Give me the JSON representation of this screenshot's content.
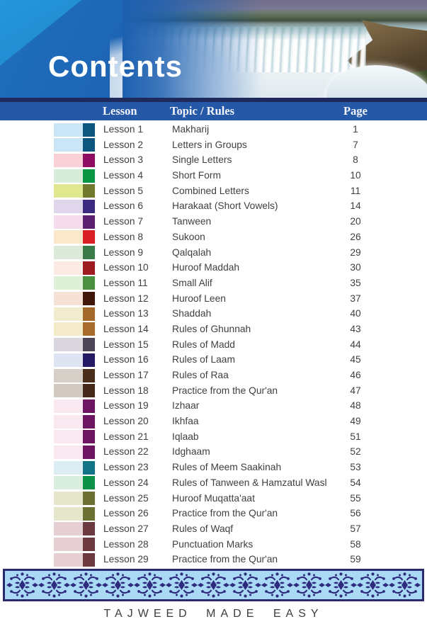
{
  "header": {
    "title": "Contents",
    "colors": {
      "header_blue": "#1d60b0",
      "header_light_blue": "#2189cd",
      "navy_rule": "#1e2a5c",
      "column_bar_blue": "#2559a8"
    }
  },
  "table": {
    "headers": {
      "lesson": "Lesson",
      "topic": "Topic / Rules",
      "page": "Page"
    },
    "rows": [
      {
        "lesson": "Lesson 1",
        "topic": "Makharij",
        "page": "1",
        "light": "#c9e5f6",
        "dark": "#0f567f"
      },
      {
        "lesson": "Lesson 2",
        "topic": "Letters in Groups",
        "page": "7",
        "light": "#c9e5f6",
        "dark": "#0f567f"
      },
      {
        "lesson": "Lesson 3",
        "topic": "Single Letters",
        "page": "8",
        "light": "#f8d0d5",
        "dark": "#8e0d62"
      },
      {
        "lesson": "Lesson 4",
        "topic": "Short Form",
        "page": "10",
        "light": "#d8ecdc",
        "dark": "#089544"
      },
      {
        "lesson": "Lesson 5",
        "topic": "Combined Letters",
        "page": "11",
        "light": "#dfe88f",
        "dark": "#71792e"
      },
      {
        "lesson": "Lesson 6",
        "topic": "Harakaat (Short Vowels)",
        "page": "14",
        "light": "#e0d6eb",
        "dark": "#3c2a80"
      },
      {
        "lesson": "Lesson 7",
        "topic": "Tanween",
        "page": "20",
        "light": "#f5dcea",
        "dark": "#5c2071"
      },
      {
        "lesson": "Lesson 8",
        "topic": "Sukoon",
        "page": "26",
        "light": "#fbe7cb",
        "dark": "#d81f26"
      },
      {
        "lesson": "Lesson 9",
        "topic": "Qalqalah",
        "page": "29",
        "light": "#dcead9",
        "dark": "#3b7b49"
      },
      {
        "lesson": "Lesson 10",
        "topic": "Huroof Maddah",
        "page": "30",
        "light": "#fcebe5",
        "dark": "#9d1b20"
      },
      {
        "lesson": "Lesson 11",
        "topic": "Small Alif",
        "page": "35",
        "light": "#def0d7",
        "dark": "#4a9040"
      },
      {
        "lesson": "Lesson 12",
        "topic": "Huroof Leen",
        "page": "37",
        "light": "#f5e1d5",
        "dark": "#40170a"
      },
      {
        "lesson": "Lesson 13",
        "topic": "Shaddah",
        "page": "40",
        "light": "#f2ecce",
        "dark": "#a3692a"
      },
      {
        "lesson": "Lesson 14",
        "topic": "Rules of Ghunnah",
        "page": "43",
        "light": "#f3ebca",
        "dark": "#a76c2b"
      },
      {
        "lesson": "Lesson 15",
        "topic": "Rules of Madd",
        "page": "44",
        "light": "#d9d6de",
        "dark": "#4d4658"
      },
      {
        "lesson": "Lesson 16",
        "topic": "Rules of Laam",
        "page": "45",
        "light": "#dee4f2",
        "dark": "#251a66"
      },
      {
        "lesson": "Lesson 17",
        "topic": "Rules of Raa",
        "page": "46",
        "light": "#d6cfc7",
        "dark": "#4a2e1b"
      },
      {
        "lesson": "Lesson 18",
        "topic": "Practice from the Qur'an",
        "page": "47",
        "light": "#d2cac1",
        "dark": "#44291a"
      },
      {
        "lesson": "Lesson 19",
        "topic": "Izhaar",
        "page": "48",
        "light": "#fae8f0",
        "dark": "#6d1560"
      },
      {
        "lesson": "Lesson 20",
        "topic": "Ikhfaa",
        "page": "49",
        "light": "#fae8f0",
        "dark": "#6d1560"
      },
      {
        "lesson": "Lesson 21",
        "topic": "Iqlaab",
        "page": "51",
        "light": "#fae8f0",
        "dark": "#6d1560"
      },
      {
        "lesson": "Lesson 22",
        "topic": "Idghaam",
        "page": "52",
        "light": "#fae8f0",
        "dark": "#6d1560"
      },
      {
        "lesson": "Lesson 23",
        "topic": "Rules of Meem Saakinah",
        "page": "53",
        "light": "#ddedf4",
        "dark": "#137387"
      },
      {
        "lesson": "Lesson 24",
        "topic": "Rules of Tanween & Hamzatul Wasl",
        "page": "54",
        "light": "#daeee0",
        "dark": "#0b9148"
      },
      {
        "lesson": "Lesson 25",
        "topic": "Huroof Muqatta'aat",
        "page": "55",
        "light": "#e6e6cd",
        "dark": "#6c7033"
      },
      {
        "lesson": "Lesson 26",
        "topic": "Practice from the Qur'an",
        "page": "56",
        "light": "#e6e6cd",
        "dark": "#6c7033"
      },
      {
        "lesson": "Lesson 27",
        "topic": "Rules of Waqf",
        "page": "57",
        "light": "#e7d0d4",
        "dark": "#6d3a42"
      },
      {
        "lesson": "Lesson 28",
        "topic": "Punctuation Marks",
        "page": "58",
        "light": "#e7d0d4",
        "dark": "#6d3a42"
      },
      {
        "lesson": "Lesson 29",
        "topic": "Practice from the Qur'an",
        "page": "59",
        "light": "#e7d0d4",
        "dark": "#6d3a42"
      }
    ]
  },
  "ornament": {
    "fill": "#a9d9f4",
    "frame": "#2b2a6d",
    "ink": "#2e2b7e"
  },
  "footer": {
    "text": "TAJWEED MADE EASY"
  }
}
